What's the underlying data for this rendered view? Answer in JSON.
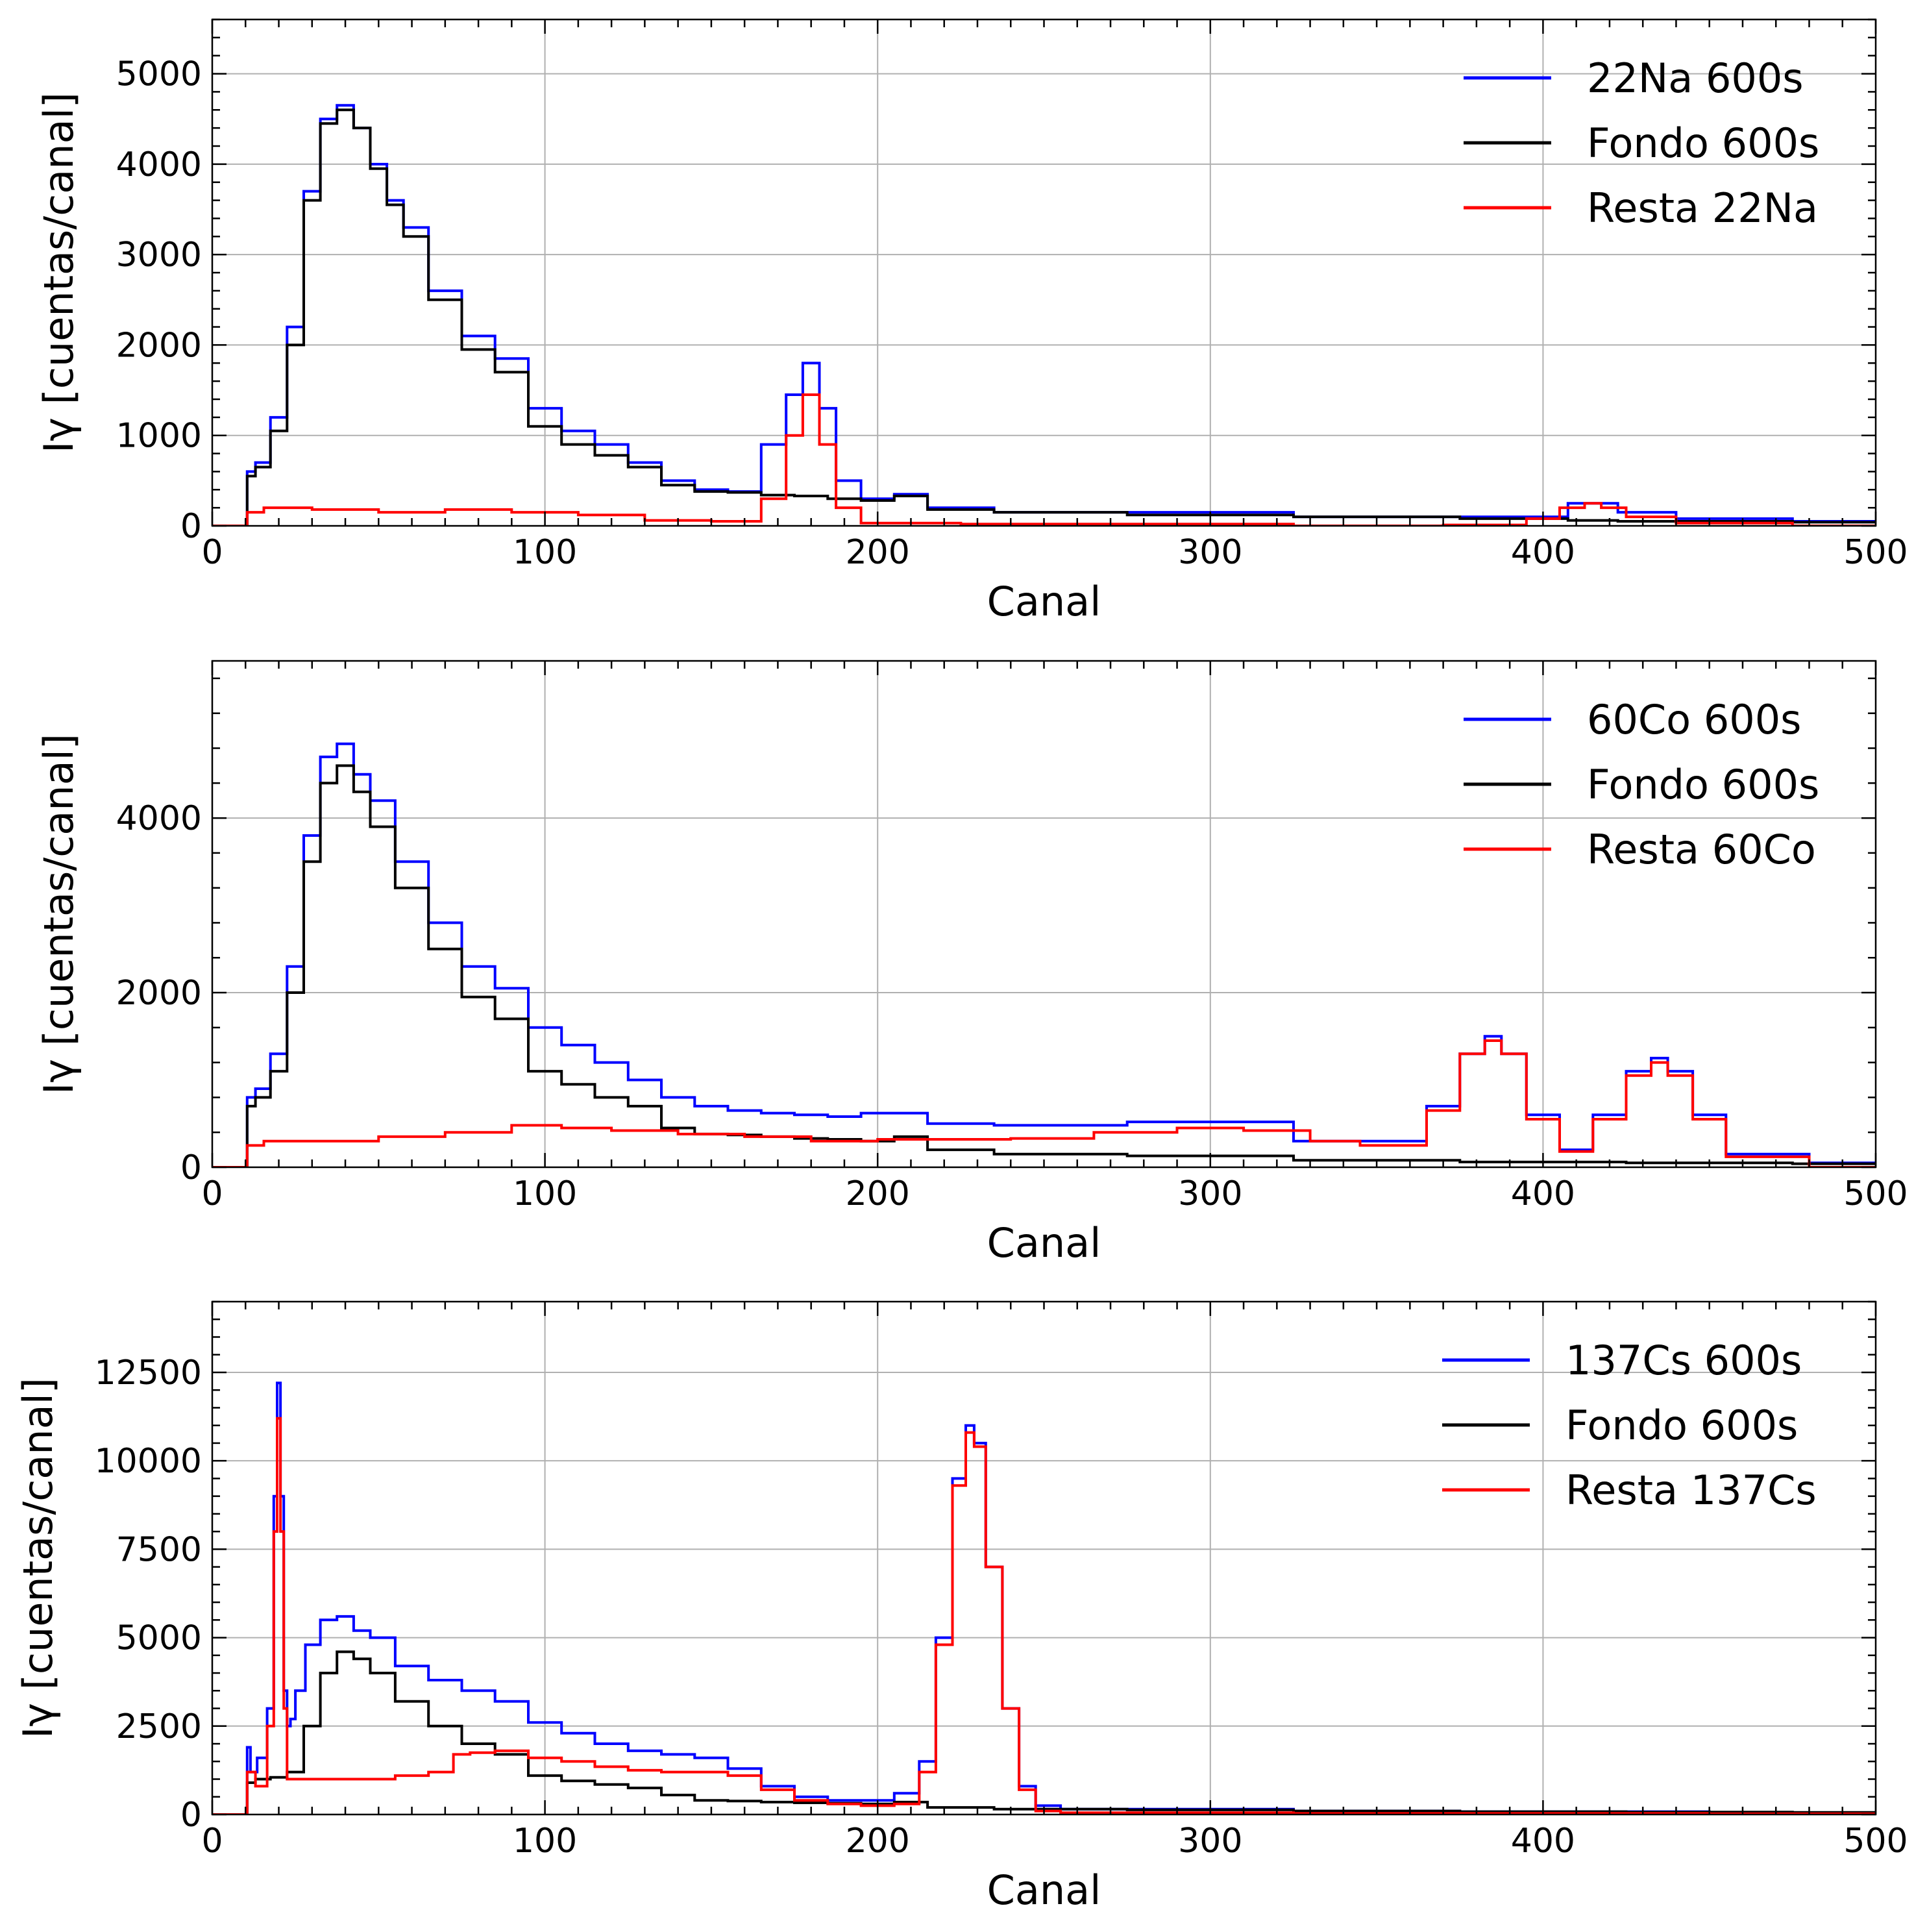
{
  "chart_data": [
    {
      "type": "line",
      "xlabel": "Canal",
      "ylabel": "Iγ [cuentas/canal]",
      "xlim": [
        0,
        500
      ],
      "ylim": [
        0,
        5600
      ],
      "xticks": [
        0,
        100,
        200,
        300,
        400,
        500
      ],
      "yticks": [
        0,
        1000,
        2000,
        3000,
        4000,
        5000
      ],
      "grid": true,
      "legend_position": "top-right",
      "series": [
        {
          "name": "22Na 600s",
          "color": "#0000ff",
          "x": [
            0,
            10,
            11,
            15,
            20,
            25,
            30,
            35,
            40,
            45,
            50,
            55,
            60,
            70,
            80,
            90,
            100,
            110,
            120,
            130,
            140,
            150,
            160,
            170,
            175,
            180,
            185,
            190,
            200,
            210,
            220,
            250,
            300,
            350,
            400,
            415,
            430,
            450,
            500
          ],
          "y": [
            0,
            0,
            600,
            700,
            1200,
            2200,
            3700,
            4500,
            4650,
            4400,
            4000,
            3600,
            3300,
            2600,
            2100,
            1850,
            1300,
            1050,
            900,
            700,
            500,
            400,
            380,
            900,
            1450,
            1800,
            1300,
            500,
            300,
            350,
            200,
            150,
            150,
            100,
            100,
            250,
            150,
            80,
            50
          ]
        },
        {
          "name": "Fondo 600s",
          "color": "#000000",
          "x": [
            0,
            10,
            11,
            15,
            20,
            25,
            30,
            35,
            40,
            45,
            50,
            55,
            60,
            70,
            80,
            90,
            100,
            110,
            120,
            130,
            140,
            150,
            160,
            170,
            180,
            190,
            200,
            210,
            220,
            250,
            300,
            350,
            400,
            415,
            430,
            450,
            500
          ],
          "y": [
            0,
            0,
            550,
            650,
            1050,
            2000,
            3600,
            4450,
            4600,
            4400,
            3950,
            3550,
            3200,
            2500,
            1950,
            1700,
            1100,
            900,
            780,
            650,
            450,
            380,
            370,
            340,
            330,
            300,
            280,
            330,
            180,
            150,
            120,
            100,
            80,
            60,
            50,
            50,
            40
          ]
        },
        {
          "name": "Resta 22Na",
          "color": "#ff0000",
          "x": [
            0,
            10,
            11,
            20,
            40,
            60,
            80,
            100,
            120,
            140,
            160,
            170,
            175,
            180,
            185,
            190,
            200,
            250,
            300,
            350,
            390,
            400,
            410,
            415,
            420,
            430,
            450,
            500
          ],
          "y": [
            0,
            0,
            150,
            200,
            180,
            150,
            180,
            150,
            120,
            60,
            50,
            300,
            1000,
            1450,
            900,
            200,
            30,
            20,
            20,
            0,
            10,
            80,
            200,
            250,
            200,
            100,
            30,
            0
          ]
        }
      ]
    },
    {
      "type": "line",
      "xlabel": "Canal",
      "ylabel": "Iγ [cuentas/canal]",
      "xlim": [
        0,
        500
      ],
      "ylim": [
        0,
        5800
      ],
      "xticks": [
        0,
        100,
        200,
        300,
        400,
        500
      ],
      "yticks": [
        0,
        2000,
        4000
      ],
      "grid": true,
      "legend_position": "top-right",
      "series": [
        {
          "name": "60Co 600s",
          "color": "#0000ff",
          "x": [
            0,
            10,
            11,
            15,
            20,
            25,
            30,
            35,
            40,
            45,
            50,
            60,
            70,
            80,
            90,
            100,
            110,
            120,
            130,
            140,
            150,
            160,
            170,
            180,
            190,
            200,
            210,
            220,
            250,
            300,
            350,
            360,
            370,
            380,
            385,
            390,
            400,
            410,
            420,
            430,
            435,
            440,
            450,
            460,
            500
          ],
          "y": [
            0,
            0,
            800,
            900,
            1300,
            2300,
            3800,
            4700,
            4850,
            4500,
            4200,
            3500,
            2800,
            2300,
            2050,
            1600,
            1400,
            1200,
            1000,
            800,
            700,
            650,
            620,
            600,
            580,
            620,
            620,
            500,
            480,
            520,
            300,
            300,
            700,
            1300,
            1500,
            1300,
            600,
            200,
            600,
            1100,
            1250,
            1100,
            600,
            150,
            50
          ]
        },
        {
          "name": "Fondo 600s",
          "color": "#000000",
          "x": [
            0,
            10,
            11,
            15,
            20,
            25,
            30,
            35,
            40,
            45,
            50,
            60,
            70,
            80,
            90,
            100,
            110,
            120,
            130,
            140,
            150,
            160,
            170,
            180,
            190,
            200,
            210,
            220,
            250,
            300,
            350,
            400,
            450,
            500
          ],
          "y": [
            0,
            0,
            700,
            800,
            1100,
            2000,
            3500,
            4400,
            4600,
            4300,
            3900,
            3200,
            2500,
            1950,
            1700,
            1100,
            950,
            800,
            700,
            450,
            380,
            370,
            350,
            330,
            320,
            300,
            350,
            200,
            150,
            130,
            80,
            60,
            50,
            40
          ]
        },
        {
          "name": "Resta 60Co",
          "color": "#ff0000",
          "x": [
            0,
            10,
            11,
            20,
            40,
            60,
            80,
            100,
            110,
            130,
            150,
            170,
            190,
            210,
            230,
            250,
            280,
            300,
            320,
            340,
            350,
            360,
            370,
            380,
            385,
            390,
            400,
            410,
            420,
            430,
            435,
            440,
            450,
            460,
            500
          ],
          "y": [
            0,
            0,
            250,
            300,
            300,
            350,
            400,
            480,
            450,
            420,
            380,
            350,
            300,
            320,
            320,
            330,
            400,
            450,
            420,
            300,
            250,
            250,
            650,
            1300,
            1450,
            1300,
            550,
            180,
            550,
            1050,
            1200,
            1050,
            550,
            120,
            0
          ]
        }
      ]
    },
    {
      "type": "line",
      "xlabel": "Canal",
      "ylabel": "Iγ [cuentas/canal]",
      "xlim": [
        0,
        500
      ],
      "ylim": [
        0,
        14500
      ],
      "xticks": [
        0,
        100,
        200,
        300,
        400,
        500
      ],
      "yticks": [
        0,
        2500,
        5000,
        7500,
        10000,
        12500
      ],
      "grid": true,
      "legend_position": "top-right",
      "series": [
        {
          "name": "137Cs 600s",
          "color": "#0000ff",
          "x": [
            0,
            10,
            11,
            12,
            15,
            18,
            19,
            20,
            21,
            22,
            23,
            24,
            26,
            30,
            35,
            40,
            45,
            50,
            60,
            70,
            80,
            90,
            100,
            110,
            120,
            130,
            140,
            150,
            160,
            170,
            180,
            190,
            200,
            210,
            215,
            220,
            225,
            228,
            230,
            235,
            240,
            245,
            250,
            260,
            300,
            350,
            400,
            500
          ],
          "y": [
            0,
            0,
            1900,
            1200,
            1600,
            3000,
            9000,
            12200,
            9000,
            3500,
            2500,
            2700,
            3500,
            4800,
            5500,
            5600,
            5200,
            5000,
            4200,
            3800,
            3500,
            3200,
            2600,
            2300,
            2000,
            1800,
            1700,
            1600,
            1300,
            800,
            500,
            400,
            400,
            600,
            1500,
            5000,
            9500,
            11000,
            10500,
            7000,
            3000,
            800,
            250,
            150,
            150,
            100,
            80,
            50
          ]
        },
        {
          "name": "Fondo 600s",
          "color": "#000000",
          "x": [
            0,
            10,
            11,
            15,
            20,
            25,
            30,
            35,
            40,
            45,
            50,
            60,
            70,
            80,
            90,
            100,
            110,
            120,
            130,
            140,
            150,
            160,
            170,
            180,
            190,
            200,
            210,
            220,
            250,
            300,
            350,
            400,
            450,
            500
          ],
          "y": [
            0,
            0,
            900,
            1000,
            1050,
            1200,
            2500,
            4000,
            4600,
            4400,
            4000,
            3200,
            2500,
            2000,
            1700,
            1100,
            950,
            850,
            750,
            550,
            400,
            380,
            350,
            330,
            320,
            300,
            350,
            200,
            150,
            130,
            100,
            80,
            70,
            60
          ]
        },
        {
          "name": "Resta 137Cs",
          "color": "#ff0000",
          "x": [
            0,
            10,
            11,
            15,
            18,
            19,
            20,
            21,
            22,
            23,
            24,
            25,
            30,
            40,
            50,
            60,
            70,
            75,
            80,
            90,
            100,
            110,
            120,
            130,
            140,
            150,
            160,
            170,
            180,
            190,
            200,
            210,
            215,
            220,
            225,
            228,
            230,
            235,
            240,
            245,
            250,
            260,
            300,
            350,
            400,
            500
          ],
          "y": [
            0,
            0,
            1200,
            800,
            2500,
            8000,
            11200,
            8000,
            3000,
            1000,
            1000,
            1000,
            1000,
            1000,
            1000,
            1100,
            1200,
            1700,
            1750,
            1800,
            1600,
            1500,
            1350,
            1250,
            1200,
            1200,
            1100,
            700,
            400,
            300,
            250,
            300,
            1200,
            4800,
            9300,
            10800,
            10400,
            7000,
            3000,
            700,
            100,
            50,
            50,
            30,
            30,
            20
          ]
        }
      ]
    }
  ]
}
